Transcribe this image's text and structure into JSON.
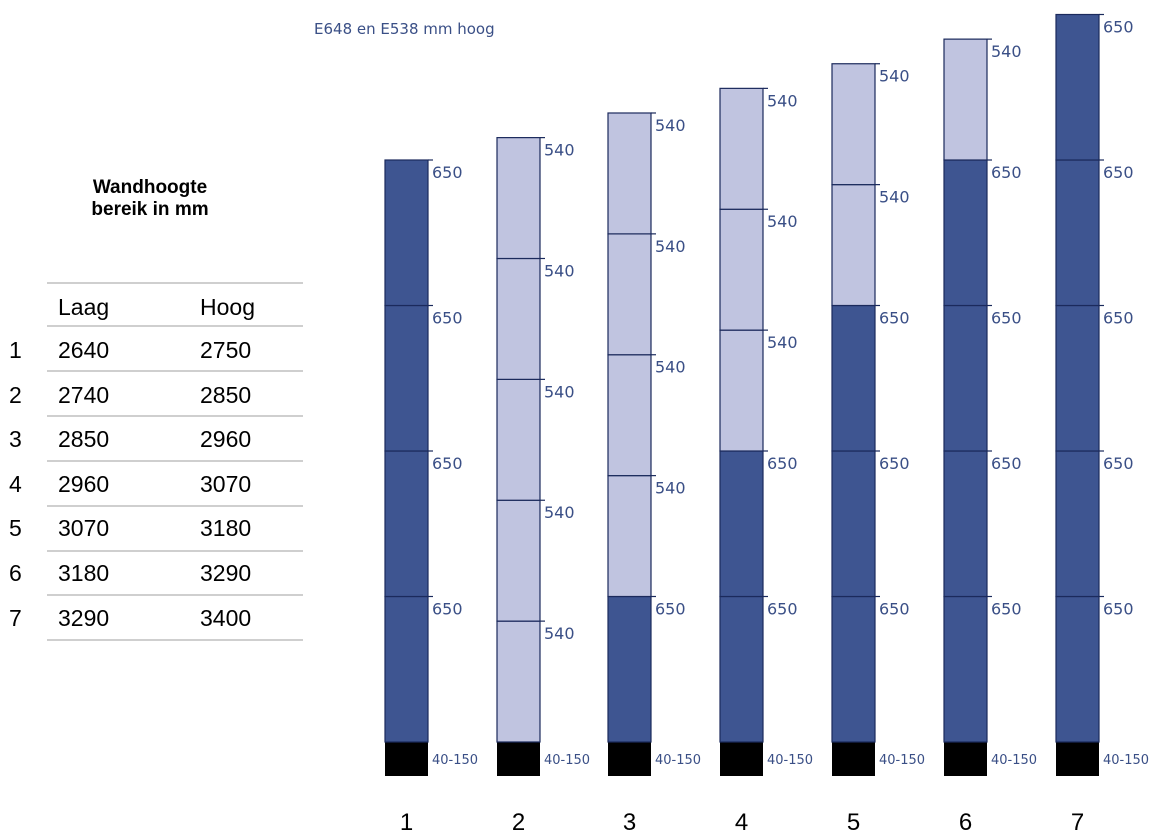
{
  "subtitle": "E648 en E538 mm hoog",
  "table": {
    "title_line1": "Wandhoogte",
    "title_line2": "bereik in mm",
    "headers": [
      "Laag",
      "Hoog"
    ],
    "rows": [
      {
        "n": "1",
        "laag": "2640",
        "hoog": "2750"
      },
      {
        "n": "2",
        "laag": "2740",
        "hoog": "2850"
      },
      {
        "n": "3",
        "laag": "2850",
        "hoog": "2960"
      },
      {
        "n": "4",
        "laag": "2960",
        "hoog": "3070"
      },
      {
        "n": "5",
        "laag": "3070",
        "hoog": "3180"
      },
      {
        "n": "6",
        "laag": "3180",
        "hoog": "3290"
      },
      {
        "n": "7",
        "laag": "3290",
        "hoog": "3400"
      }
    ]
  },
  "colors": {
    "dark_panel": "#3e5591",
    "light_panel": "#c0c4e0",
    "panel_border": "#1b2a5c",
    "base": "#000000",
    "label": "#3a4f86"
  },
  "base_label": "40-150",
  "columns": [
    {
      "label": "1",
      "panels_bottom_to_top": [
        "650",
        "650",
        "650",
        "650"
      ]
    },
    {
      "label": "2",
      "panels_bottom_to_top": [
        "540",
        "540",
        "540",
        "540",
        "540"
      ]
    },
    {
      "label": "3",
      "panels_bottom_to_top": [
        "650",
        "540",
        "540",
        "540",
        "540"
      ]
    },
    {
      "label": "4",
      "panels_bottom_to_top": [
        "650",
        "650",
        "540",
        "540",
        "540"
      ]
    },
    {
      "label": "5",
      "panels_bottom_to_top": [
        "650",
        "650",
        "650",
        "540",
        "540"
      ]
    },
    {
      "label": "6",
      "panels_bottom_to_top": [
        "650",
        "650",
        "650",
        "650",
        "540"
      ]
    },
    {
      "label": "7",
      "panels_bottom_to_top": [
        "650",
        "650",
        "650",
        "650",
        "650"
      ]
    }
  ]
}
